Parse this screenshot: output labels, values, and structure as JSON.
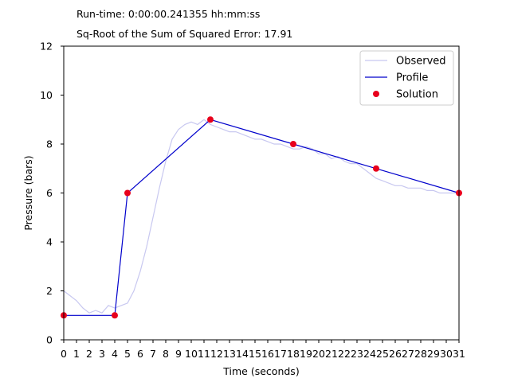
{
  "header": {
    "runtime_text": "Run-time: 0:00:00.241355 hh:mm:ss",
    "error_text": "Sq-Root of the Sum of Squared Error: 17.91"
  },
  "chart_data": {
    "type": "line",
    "title": "",
    "xlabel": "Time (seconds)",
    "ylabel": "Pressure (bars)",
    "xlim": [
      0,
      31
    ],
    "ylim": [
      0,
      12
    ],
    "x_ticks": [
      0,
      1,
      2,
      3,
      4,
      5,
      6,
      7,
      8,
      9,
      10,
      11,
      12,
      13,
      14,
      15,
      16,
      17,
      18,
      19,
      20,
      21,
      22,
      23,
      24,
      25,
      26,
      27,
      28,
      29,
      30,
      31
    ],
    "y_ticks": [
      0,
      2,
      4,
      6,
      8,
      10,
      12
    ],
    "grid": false,
    "legend": "top-right",
    "series": [
      {
        "name": "Observed",
        "kind": "line",
        "color": "#c8c8f0",
        "x": [
          0,
          0.5,
          1,
          1.5,
          2,
          2.5,
          3,
          3.5,
          4,
          4.5,
          5,
          5.5,
          6,
          6.5,
          7,
          7.5,
          8,
          8.5,
          9,
          9.5,
          10,
          10.5,
          11,
          11.5,
          12,
          12.5,
          13,
          13.5,
          14,
          14.5,
          15,
          15.5,
          16,
          16.5,
          17,
          17.5,
          18,
          18.5,
          19,
          19.5,
          20,
          20.5,
          21,
          21.5,
          22,
          22.5,
          23,
          23.5,
          24,
          24.5,
          25,
          25.5,
          26,
          26.5,
          27,
          27.5,
          28,
          28.5,
          29,
          29.5,
          30,
          30.5,
          31
        ],
        "y": [
          2.0,
          1.8,
          1.6,
          1.3,
          1.1,
          1.2,
          1.1,
          1.4,
          1.3,
          1.4,
          1.5,
          2.0,
          2.8,
          3.8,
          5.0,
          6.2,
          7.3,
          8.2,
          8.6,
          8.8,
          8.9,
          8.8,
          9.0,
          8.8,
          8.7,
          8.6,
          8.5,
          8.5,
          8.4,
          8.3,
          8.2,
          8.2,
          8.1,
          8.0,
          8.0,
          7.9,
          7.8,
          7.8,
          7.9,
          7.8,
          7.6,
          7.6,
          7.4,
          7.5,
          7.3,
          7.2,
          7.2,
          7.0,
          6.8,
          6.6,
          6.5,
          6.4,
          6.3,
          6.3,
          6.2,
          6.2,
          6.2,
          6.1,
          6.1,
          6.0,
          6.0,
          6.0,
          6.0
        ]
      },
      {
        "name": "Profile",
        "kind": "line",
        "color": "#0000cc",
        "x": [
          0,
          4,
          5,
          11.5,
          18,
          24.5,
          31
        ],
        "y": [
          1,
          1,
          6,
          9,
          8,
          7,
          6
        ]
      },
      {
        "name": "Solution",
        "kind": "scatter",
        "color": "#e8001c",
        "x": [
          0,
          4,
          5,
          11.5,
          18,
          24.5,
          31
        ],
        "y": [
          1,
          1,
          6,
          9,
          8,
          7,
          6
        ]
      }
    ]
  }
}
